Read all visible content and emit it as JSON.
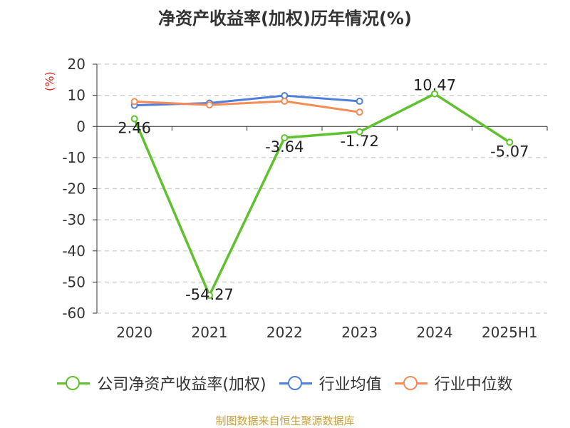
{
  "chart_data": {
    "type": "line",
    "title": "净资产收益率(加权)历年情况(%)",
    "ylabel": "(%)",
    "xlabel": "",
    "categories": [
      "2020",
      "2021",
      "2022",
      "2023",
      "2024",
      "2025H1"
    ],
    "ylim": [
      -60,
      20
    ],
    "yticks": [
      20,
      10,
      0,
      -10,
      -20,
      -30,
      -40,
      -50,
      -60
    ],
    "grid": true,
    "legend_position": "bottom",
    "series": [
      {
        "name": "公司净资产收益率(加权)",
        "color": "#5ec12d",
        "values": [
          2.46,
          -54.27,
          -3.64,
          -1.72,
          10.47,
          -5.07
        ],
        "labels": [
          "2.46",
          "-54.27",
          "-3.64",
          "-1.72",
          "10.47",
          "-5.07"
        ]
      },
      {
        "name": "行业均值",
        "color": "#4f7fdc",
        "values": [
          6.8,
          7.5,
          9.9,
          8.1,
          null,
          null
        ]
      },
      {
        "name": "行业中位数",
        "color": "#f58c57",
        "values": [
          8.0,
          6.9,
          8.1,
          4.6,
          null,
          null
        ]
      }
    ]
  },
  "footer": {
    "source": "制图数据来自恒生聚源数据库"
  }
}
